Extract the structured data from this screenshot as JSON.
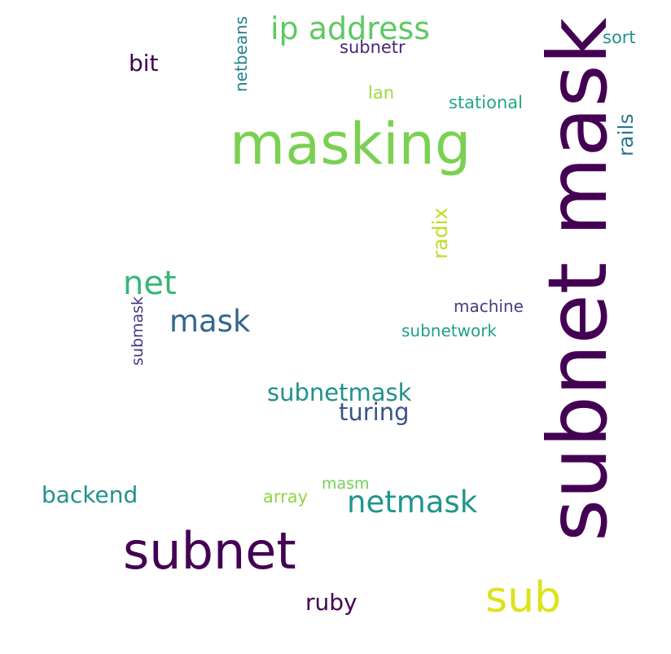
{
  "words": {
    "subnet_mask": {
      "text": "subnet mask",
      "color": "#440154"
    },
    "masking": {
      "text": "masking",
      "color": "#7ad151"
    },
    "subnet": {
      "text": "subnet",
      "color": "#440154"
    },
    "sub": {
      "text": "sub",
      "color": "#dde318"
    },
    "ip_address": {
      "text": "ip address",
      "color": "#5ec962"
    },
    "netmask": {
      "text": "netmask",
      "color": "#1f968b"
    },
    "net": {
      "text": "net",
      "color": "#35b779"
    },
    "mask": {
      "text": "mask",
      "color": "#31688e"
    },
    "subnetmask": {
      "text": "subnetmask",
      "color": "#21918c"
    },
    "turing": {
      "text": "turing",
      "color": "#3b528b"
    },
    "backend": {
      "text": "backend",
      "color": "#21918c"
    },
    "ruby": {
      "text": "ruby",
      "color": "#440154"
    },
    "bit": {
      "text": "bit",
      "color": "#440154"
    },
    "radix": {
      "text": "radix",
      "color": "#bddf26"
    },
    "rails": {
      "text": "rails",
      "color": "#2a788e"
    },
    "netbeans": {
      "text": "netbeans",
      "color": "#26828e"
    },
    "subnetr": {
      "text": "subnetr",
      "color": "#482878"
    },
    "sort": {
      "text": "sort",
      "color": "#21918c"
    },
    "lan": {
      "text": "lan",
      "color": "#a0da39"
    },
    "stational": {
      "text": "stational",
      "color": "#22a884"
    },
    "machine": {
      "text": "machine",
      "color": "#433e85"
    },
    "subnetwork": {
      "text": "subnetwork",
      "color": "#1fa187"
    },
    "submask": {
      "text": "submask",
      "color": "#443983"
    },
    "masm": {
      "text": "masm",
      "color": "#74d055"
    },
    "array": {
      "text": "array",
      "color": "#8ed645"
    }
  }
}
